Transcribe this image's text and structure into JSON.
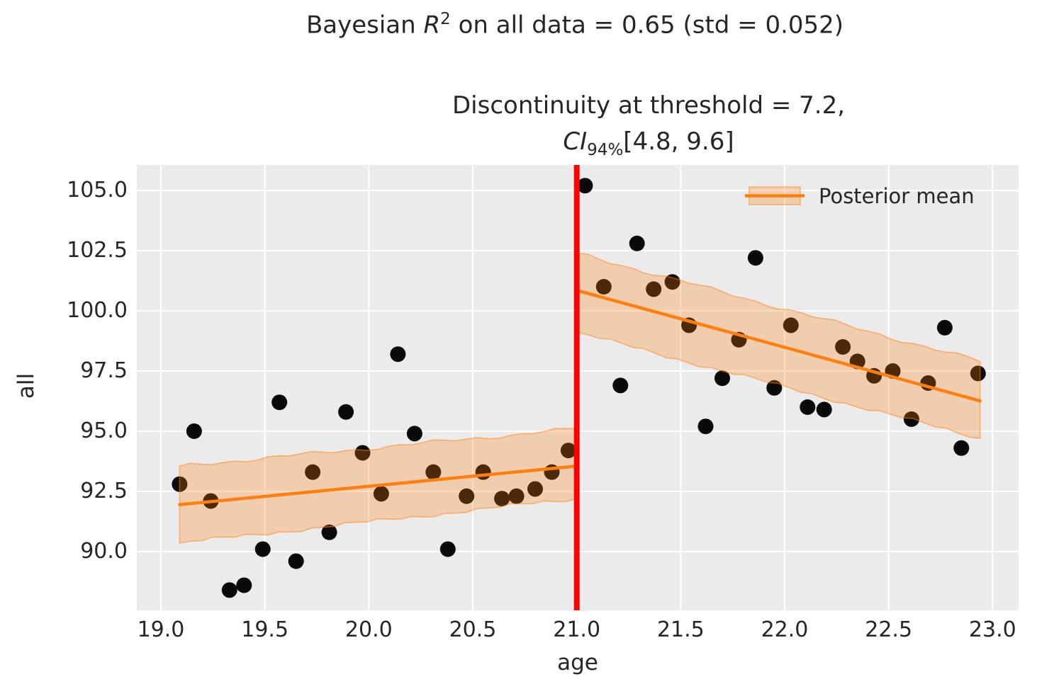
{
  "figure": {
    "title": {
      "part1": "Bayesian ",
      "r_symbol": "R",
      "r_exponent": "2",
      "part2": " on all data = 0.65 (std = 0.052)"
    },
    "subtitle": {
      "line1": "Discontinuity at threshold = 7.2,",
      "ci_label": "CI",
      "ci_subscript": "94%",
      "ci_interval": "[4.8, 9.6]"
    }
  },
  "chart_data": {
    "type": "scatter",
    "title": "Bayesian R2 on all data = 0.65 (std = 0.052)",
    "subtitle": "Discontinuity at threshold = 7.2, CI 94% [4.8, 9.6]",
    "xlabel": "age",
    "ylabel": "all",
    "xlim": [
      18.88,
      23.13
    ],
    "ylim": [
      87.6,
      106.1
    ],
    "grid": true,
    "x_ticks": [
      19.0,
      19.5,
      20.0,
      20.5,
      21.0,
      21.5,
      22.0,
      22.5,
      23.0
    ],
    "x_tick_labels": [
      "19.0",
      "19.5",
      "20.0",
      "20.5",
      "21.0",
      "21.5",
      "22.0",
      "22.5",
      "23.0"
    ],
    "y_ticks": [
      105.0,
      102.5,
      100.0,
      97.5,
      95.0,
      92.5,
      90.0
    ],
    "y_tick_labels": [
      "105.0",
      "102.5",
      "100.0",
      "97.5",
      "95.0",
      "92.5",
      "90.0"
    ],
    "bayesian_r2": {
      "mean": 0.65,
      "std": 0.052
    },
    "discontinuity": {
      "estimate": 7.2,
      "ci_94": [
        4.8,
        9.6
      ]
    },
    "threshold_line": {
      "x": 21.0,
      "color": "#ff0000",
      "width": 8
    },
    "legend": {
      "label": "Posterior mean",
      "position": "upper right"
    },
    "scatter": {
      "name": "observations",
      "color": "#0a0a0a",
      "marker_radius": 11,
      "points_below_threshold": [
        [
          19.09,
          92.8
        ],
        [
          19.16,
          95.0
        ],
        [
          19.24,
          92.1
        ],
        [
          19.33,
          88.4
        ],
        [
          19.4,
          88.6
        ],
        [
          19.49,
          90.1
        ],
        [
          19.57,
          96.2
        ],
        [
          19.65,
          89.6
        ],
        [
          19.73,
          93.3
        ],
        [
          19.81,
          90.8
        ],
        [
          19.89,
          95.8
        ],
        [
          19.97,
          94.1
        ],
        [
          20.06,
          92.4
        ],
        [
          20.14,
          98.2
        ],
        [
          20.22,
          94.9
        ],
        [
          20.31,
          93.3
        ],
        [
          20.38,
          90.1
        ],
        [
          20.47,
          92.3
        ],
        [
          20.55,
          93.3
        ],
        [
          20.64,
          92.2
        ],
        [
          20.71,
          92.3
        ],
        [
          20.8,
          92.6
        ],
        [
          20.88,
          93.3
        ],
        [
          20.96,
          94.2
        ]
      ],
      "points_above_threshold": [
        [
          21.04,
          105.2
        ],
        [
          21.13,
          101.0
        ],
        [
          21.21,
          96.9
        ],
        [
          21.29,
          102.8
        ],
        [
          21.37,
          100.9
        ],
        [
          21.46,
          101.2
        ],
        [
          21.54,
          99.4
        ],
        [
          21.62,
          95.2
        ],
        [
          21.7,
          97.2
        ],
        [
          21.78,
          98.8
        ],
        [
          21.86,
          102.2
        ],
        [
          21.95,
          96.8
        ],
        [
          22.03,
          99.4
        ],
        [
          22.11,
          96.0
        ],
        [
          22.19,
          95.9
        ],
        [
          22.28,
          98.5
        ],
        [
          22.35,
          97.9
        ],
        [
          22.43,
          97.3
        ],
        [
          22.52,
          97.5
        ],
        [
          22.61,
          95.5
        ],
        [
          22.69,
          97.0
        ],
        [
          22.77,
          99.3
        ],
        [
          22.85,
          94.3
        ],
        [
          22.93,
          97.4
        ]
      ]
    },
    "posterior_mean": {
      "color": "#ff7f0e",
      "width": 4.5,
      "left_segment": {
        "x": [
          19.09,
          21.0
        ],
        "y": [
          91.95,
          93.55
        ]
      },
      "right_segment": {
        "x": [
          21.0,
          22.94
        ],
        "y": [
          100.85,
          96.26
        ]
      }
    },
    "credible_band": {
      "color": "#ff7f0e",
      "alpha": 0.27,
      "edge_color": "rgba(255,127,14,0.5)",
      "left_segment": {
        "x": [
          19.09,
          21.0
        ],
        "top": [
          93.55,
          95.1
        ],
        "bottom": [
          90.35,
          92.2
        ]
      },
      "right_segment": {
        "x": [
          21.0,
          22.94
        ],
        "top": [
          102.4,
          97.9
        ],
        "bottom": [
          99.1,
          94.7
        ]
      }
    },
    "colors": {
      "plot_background": "#ebebeb",
      "grid": "#ffffff",
      "text": "#262626",
      "figure_background": "#ffffff"
    }
  }
}
